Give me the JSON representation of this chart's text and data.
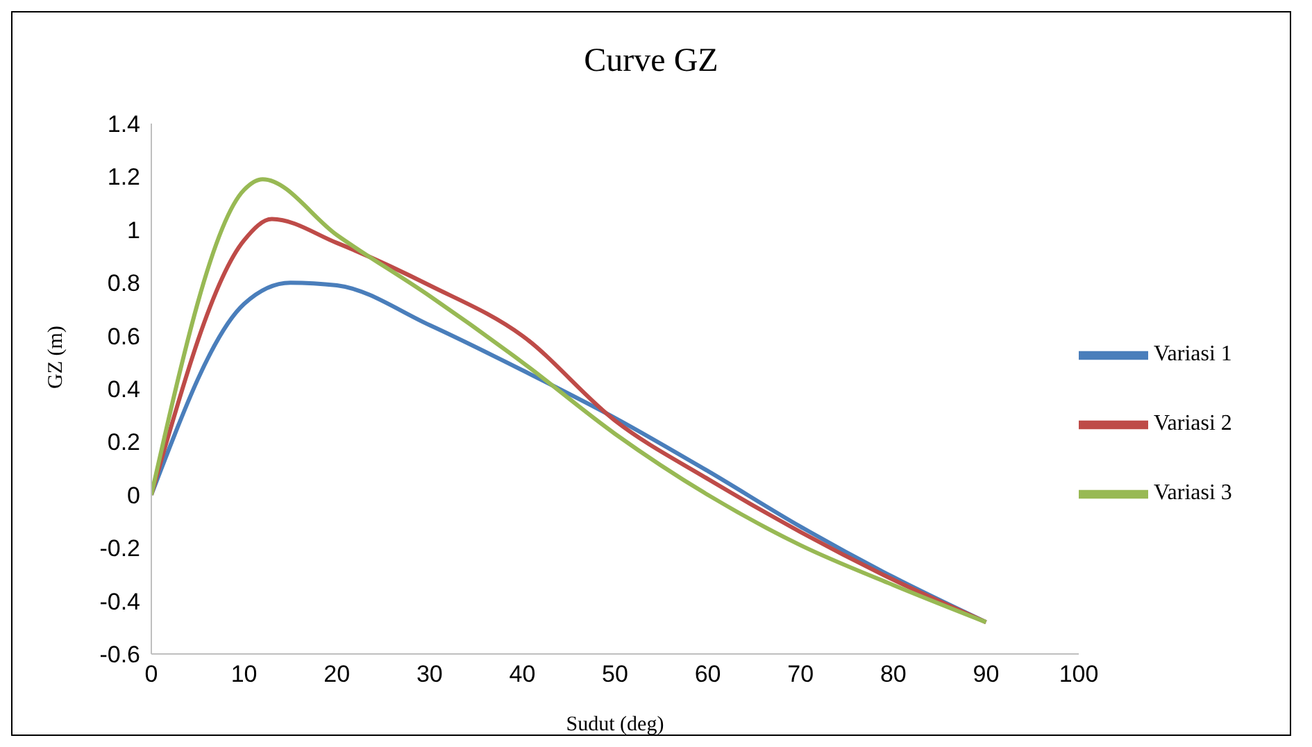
{
  "chart_data": {
    "type": "line",
    "title": "Curve GZ",
    "xlabel": "Sudut (deg)",
    "ylabel": "GZ (m)",
    "xlim": [
      0,
      100
    ],
    "xticks": [
      0,
      10,
      20,
      30,
      40,
      50,
      60,
      70,
      80,
      90,
      100
    ],
    "ylim": [
      -0.6,
      1.4
    ],
    "yticks": [
      -0.6,
      -0.4,
      -0.2,
      0,
      0.2,
      0.4,
      0.6,
      0.8,
      1,
      1.2,
      1.4
    ],
    "grid": false,
    "legend": "right",
    "marker": "none",
    "line_style": "solid",
    "series": [
      {
        "name": "Variasi 1",
        "color": "#4a7ebb",
        "x": [
          0,
          10,
          15,
          20,
          30,
          40,
          50,
          60,
          70,
          80,
          90
        ],
        "values": [
          0,
          0.72,
          0.8,
          0.79,
          0.64,
          0.47,
          0.29,
          0.09,
          -0.12,
          -0.31,
          -0.48
        ]
      },
      {
        "name": "Variasi 2",
        "color": "#be4b48",
        "x": [
          0,
          10,
          13,
          20,
          30,
          40,
          50,
          60,
          70,
          80,
          90
        ],
        "values": [
          0,
          0.96,
          1.04,
          0.95,
          0.79,
          0.6,
          0.28,
          0.06,
          -0.14,
          -0.32,
          -0.48
        ]
      },
      {
        "name": "Variasi 3",
        "color": "#98b954",
        "x": [
          0,
          10,
          12,
          20,
          30,
          40,
          50,
          60,
          70,
          80,
          90
        ],
        "values": [
          0,
          1.15,
          1.19,
          0.98,
          0.75,
          0.5,
          0.23,
          0,
          -0.19,
          -0.34,
          -0.48
        ]
      }
    ]
  }
}
